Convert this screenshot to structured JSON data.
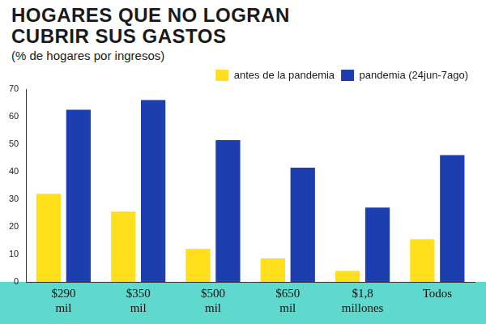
{
  "chart_data": {
    "type": "bar",
    "title": "HOGARES QUE NO LOGRAN CUBRIR SUS GASTOS",
    "subtitle": "(% de hogares por ingresos)",
    "categories": [
      "$290 mil",
      "$350 mil",
      "$500 mil",
      "$650 mil",
      "$1,8 millones",
      "Todos"
    ],
    "series": [
      {
        "name": "antes de la pandemia",
        "color": "#ffdf1b",
        "values": [
          32,
          25.5,
          12,
          8.5,
          4,
          15.5
        ]
      },
      {
        "name": "pandemia (24jun-7ago)",
        "color": "#1c3eae",
        "values": [
          62.5,
          66,
          51.5,
          41.5,
          27,
          46
        ]
      }
    ],
    "ylim": [
      0,
      70
    ],
    "yticks": [
      0,
      10,
      20,
      30,
      40,
      50,
      60,
      70
    ],
    "grid": false,
    "legend": "top right"
  }
}
